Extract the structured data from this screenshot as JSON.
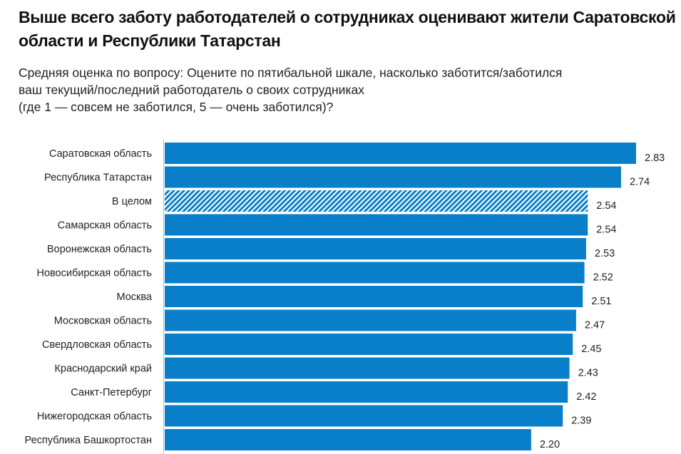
{
  "chart_data": {
    "type": "bar",
    "orientation": "horizontal",
    "title": "Выше всего заботу работодателей о сотрудниках оценивают жители Саратовской области и Республики Татарстан",
    "subtitle_lines": [
      "Средняя оценка по вопросу: Оцените по пятибальной шкале, насколько заботится/заботился",
      "ваш текущий/последний работодатель о своих сотрудниках",
      "(где 1 — совсем не заботился, 5 — очень заботился)?"
    ],
    "categories": [
      "Саратовская область",
      "Республика Татарстан",
      "В целом",
      "Самарская область",
      "Воронежская область",
      "Новосибирская область",
      "Москва",
      "Московская область",
      "Свердловская область",
      "Краснодарский край",
      "Санкт-Петербург",
      "Нижегородская область",
      "Республика Башкортостан"
    ],
    "values": [
      2.83,
      2.74,
      2.54,
      2.54,
      2.53,
      2.52,
      2.51,
      2.47,
      2.45,
      2.43,
      2.42,
      2.39,
      2.2
    ],
    "value_labels": [
      "2.83",
      "2.74",
      "2.54",
      "2.54",
      "2.53",
      "2.52",
      "2.51",
      "2.47",
      "2.45",
      "2.43",
      "2.42",
      "2.39",
      "2.20"
    ],
    "highlight": [
      false,
      false,
      true,
      false,
      false,
      false,
      false,
      false,
      false,
      false,
      false,
      false,
      false
    ],
    "xlim": [
      0,
      2.83
    ],
    "grid": false,
    "colors": {
      "bar": "#0a7fc9",
      "hatch_bg": "#ffffff",
      "axis": "#bbbbbb"
    }
  }
}
